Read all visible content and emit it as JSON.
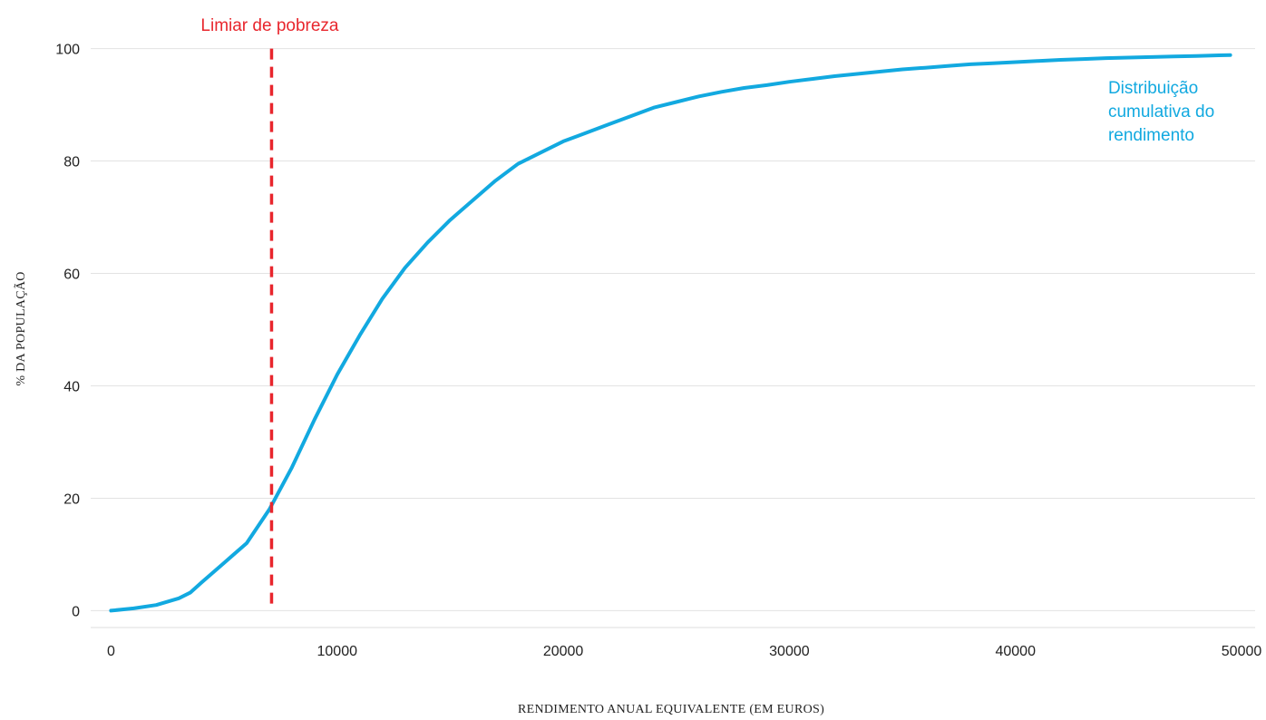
{
  "chart_data": {
    "type": "line",
    "title": "",
    "xlabel": "RENDIMENTO ANUAL EQUIVALENTE (EM EUROS)",
    "ylabel": "% DA POPULAÇÃO",
    "xlim": [
      -900,
      50600
    ],
    "ylim": [
      -3,
      103
    ],
    "xticks": [
      0,
      10000,
      20000,
      30000,
      40000,
      50000
    ],
    "yticks": [
      0,
      20,
      40,
      60,
      80,
      100
    ],
    "grid": "horizontal",
    "series": [
      {
        "name": "Distribuição cumulativa do rendimento",
        "color": "#12a9e0",
        "x": [
          0,
          1000,
          2000,
          3000,
          3500,
          4000,
          5000,
          6000,
          7000,
          8000,
          9000,
          10000,
          11000,
          12000,
          13000,
          14000,
          15000,
          16000,
          17000,
          18000,
          19000,
          20000,
          21000,
          22000,
          23000,
          24000,
          25000,
          26000,
          27000,
          28000,
          29000,
          30000,
          31000,
          32000,
          33000,
          34000,
          35000,
          36000,
          37000,
          38000,
          39000,
          40000,
          41000,
          42000,
          43000,
          44000,
          45000,
          46000,
          47000,
          48000,
          49000,
          49500
        ],
        "y": [
          0,
          0.4,
          1,
          2.2,
          3.2,
          5,
          8.5,
          12,
          18,
          25.5,
          34,
          42,
          49,
          55.5,
          61,
          65.5,
          69.5,
          73,
          76.5,
          79.5,
          81.5,
          83.5,
          85,
          86.5,
          88,
          89.5,
          90.5,
          91.5,
          92.3,
          93,
          93.5,
          94.1,
          94.6,
          95.1,
          95.5,
          95.9,
          96.3,
          96.6,
          96.9,
          97.2,
          97.4,
          97.6,
          97.8,
          98,
          98.15,
          98.3,
          98.4,
          98.5,
          98.6,
          98.7,
          98.8,
          98.85
        ]
      }
    ],
    "threshold": {
      "x": 7100,
      "label": "Limiar de pobreza",
      "color": "#e8262d"
    },
    "series_label": [
      "Distribuição",
      "cumulativa do",
      "rendimento"
    ]
  }
}
